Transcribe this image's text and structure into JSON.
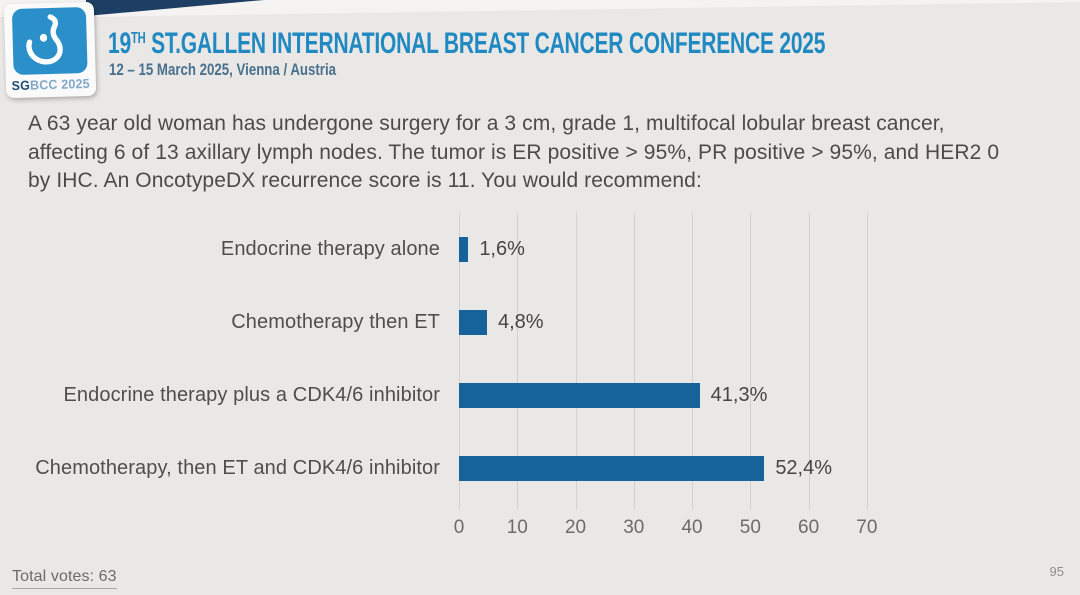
{
  "header": {
    "logo": {
      "icon": "sgbcc-drop-icon",
      "text_bold": "SG",
      "text_light": "BCC 2025"
    },
    "title_prefix": "19",
    "title_sup": "TH",
    "title_main": " ST.GALLEN INTERNATIONAL BREAST CANCER CONFERENCE 2025",
    "subtitle": "12 – 15 March 2025, Vienna / Austria"
  },
  "question": {
    "lines": [
      "A 63 year old woman has undergone surgery for a 3 cm, grade 1, multifocal lobular breast cancer,",
      "affecting 6 of 13 axillary lymph nodes. The tumor is ER positive > 95%, PR positive > 95%, and HER2 0",
      "by IHC. An OncotypeDX recurrence score is 11. You would recommend:"
    ]
  },
  "chart_data": {
    "type": "bar",
    "orientation": "horizontal",
    "title": "",
    "categories": [
      "Endocrine therapy alone",
      "Chemotherapy then ET",
      "Endocrine therapy plus a CDK4/6 inhibitor",
      "Chemotherapy, then ET and CDK4/6 inhibitor"
    ],
    "values": [
      1.6,
      4.8,
      41.3,
      52.4
    ],
    "value_labels": [
      "1,6%",
      "4,8%",
      "41,3%",
      "52,4%"
    ],
    "x_ticks": [
      0,
      10,
      20,
      30,
      40,
      50,
      60,
      70
    ],
    "xlim": [
      0,
      75
    ],
    "grid": true,
    "legend": false,
    "bar_color": "#16639b",
    "gridline_color": "#d2d1cf"
  },
  "footer": {
    "total_votes": "Total votes: 63",
    "page_number": "95"
  },
  "colors": {
    "background": "#e9e8e6",
    "title_blue": "#2189c2",
    "subtitle_blue": "#49708c",
    "logo_blue": "#2b90ca",
    "logo_dark_navy": "#1d4b70",
    "ribbon_navy": "#1e3f63",
    "question_text": "#4b4b49",
    "bar_blue": "#16639b"
  }
}
